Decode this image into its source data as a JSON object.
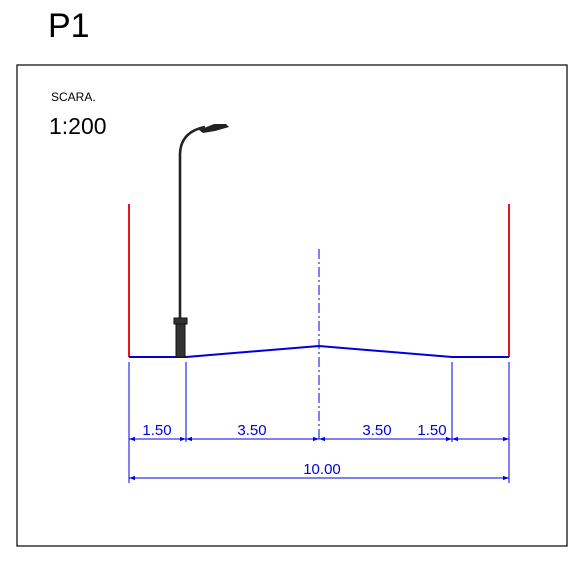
{
  "sheet": {
    "title": "P1",
    "scale_label": "SCARA.",
    "scale_value": "1:200"
  },
  "dimensions": {
    "segments": [
      "1.50",
      "3.50",
      "3.50",
      "1.50"
    ],
    "total": "10.00"
  },
  "colors": {
    "road_profile": "#0000dd",
    "dimension": "#0000dd",
    "boundary": "#e8141e",
    "centerline": "#0000dd",
    "lamp_post": "#222222",
    "frame": "#000000"
  }
}
